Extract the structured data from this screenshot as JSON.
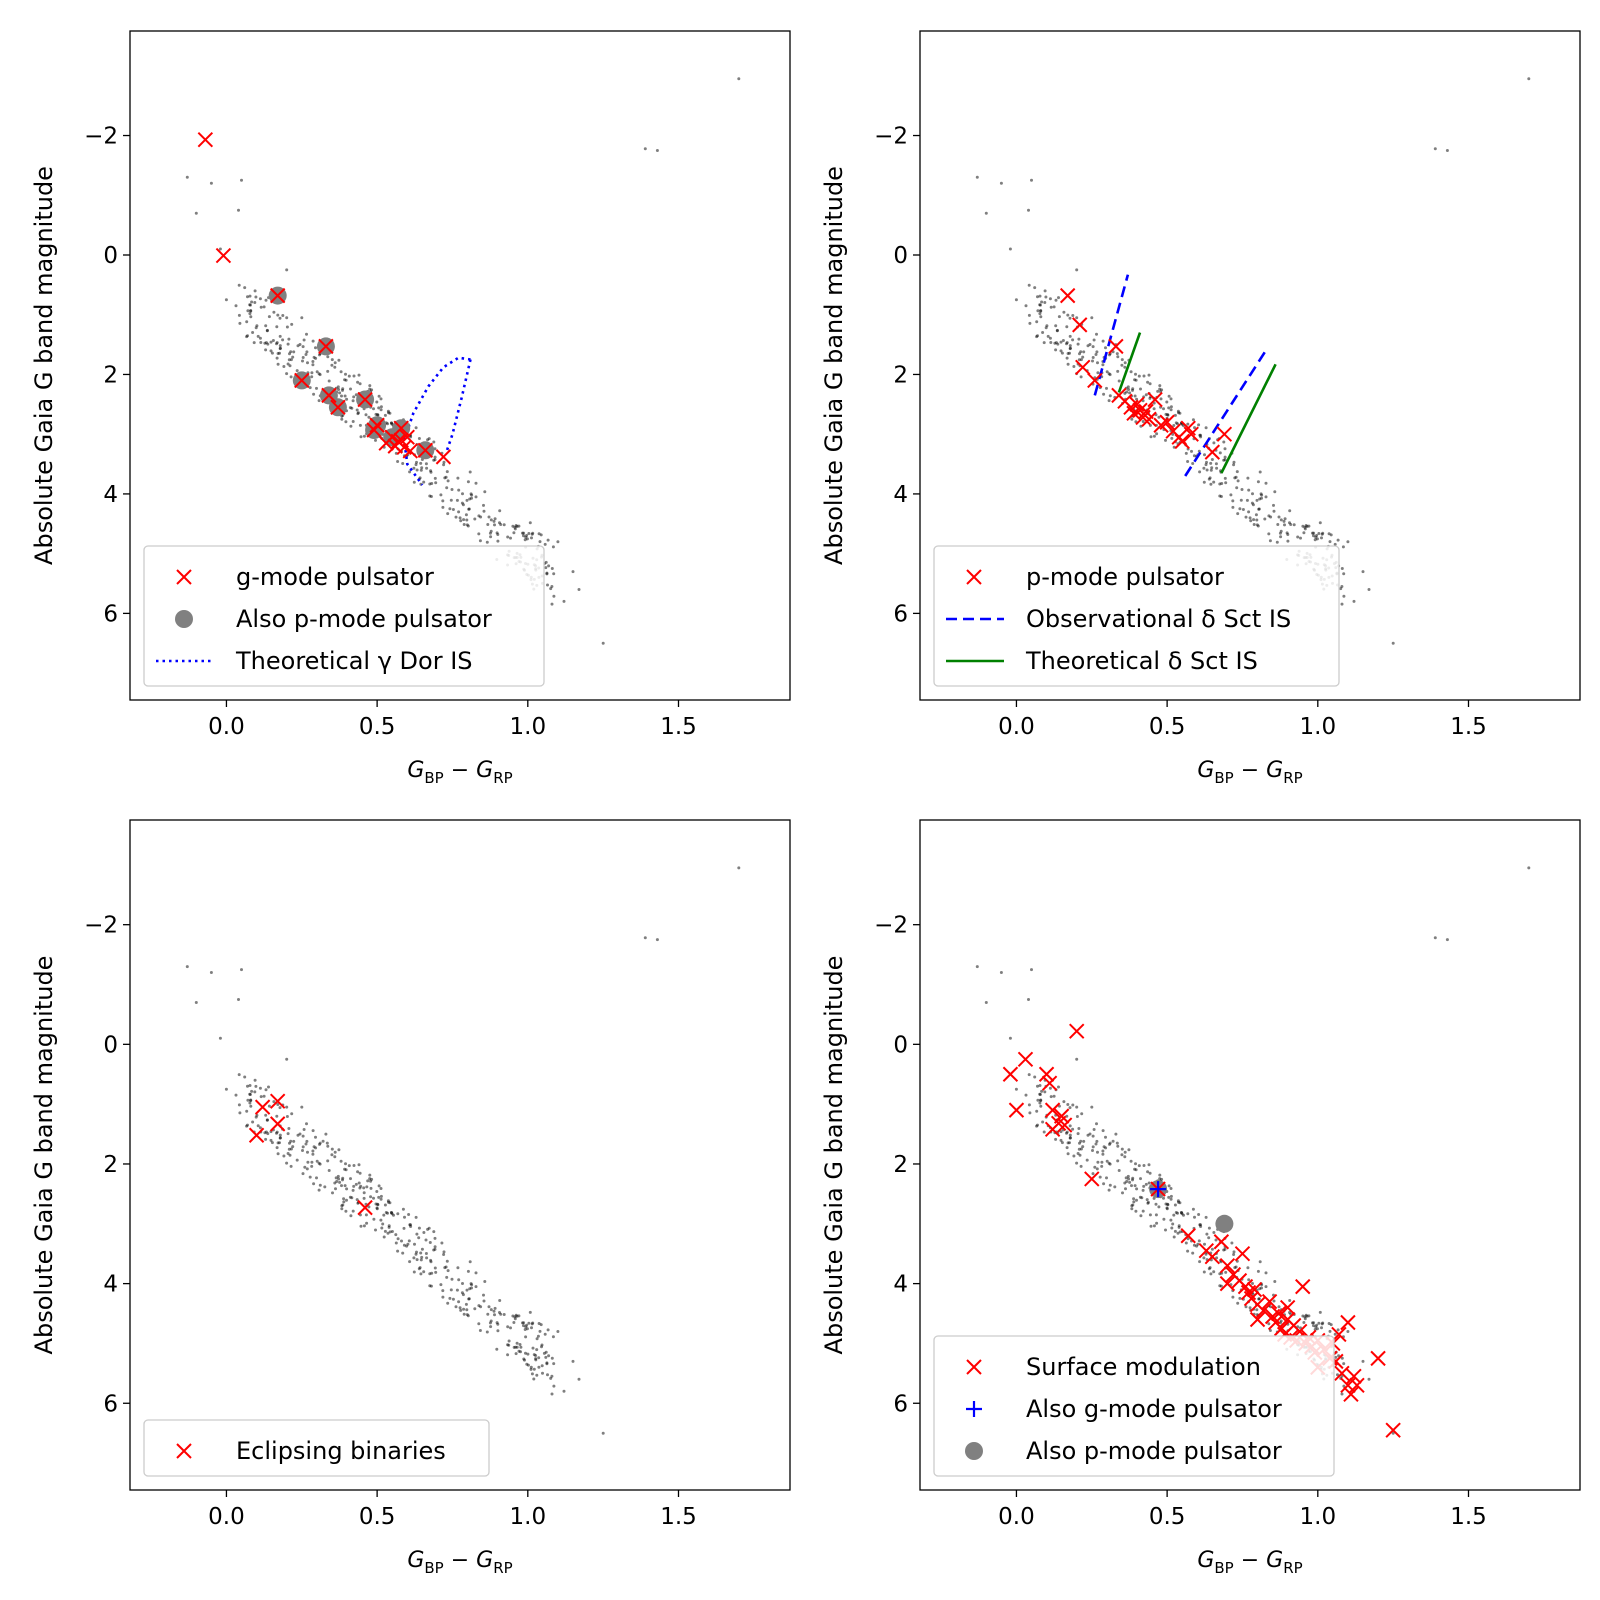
{
  "colors": {
    "red": "#ff0000",
    "blue": "#0000ff",
    "green": "#008000",
    "gray": "#808080",
    "field": "#000000"
  },
  "chart_data": [
    {
      "type": "scatter",
      "panel": "top-left",
      "xlabel": "G_BP − G_RP",
      "xlabel_main": "G",
      "xlabel_sub1": "BP",
      "xlabel_minus": " − ",
      "xlabel_sub2": "RP",
      "ylabel": "Absolute Gaia G band magnitude",
      "xlim": [
        -0.32,
        1.87
      ],
      "ylim": [
        7.45,
        -3.75
      ],
      "xticks": [
        "0.0",
        "0.5",
        "1.0",
        "1.5"
      ],
      "xtick_values": [
        0,
        0.5,
        1.0,
        1.5
      ],
      "yticks": [
        "−2",
        "0",
        "2",
        "4",
        "6"
      ],
      "ytick_values": [
        -2,
        0,
        2,
        4,
        6
      ],
      "legend_position": "lower-left",
      "legend": [
        {
          "label": "g-mode pulsator",
          "marker": "x",
          "color": "#ff0000"
        },
        {
          "label": "Also p-mode pulsator",
          "marker": "o",
          "color": "#808080"
        },
        {
          "label": "Theoretical γ Dor IS",
          "marker": "dotted",
          "color": "#0000ff"
        }
      ],
      "field_stars": "background sample",
      "gray_dots": [
        [
          0.17,
          0.68
        ],
        [
          0.33,
          1.53
        ],
        [
          0.25,
          2.1
        ],
        [
          0.34,
          2.35
        ],
        [
          0.37,
          2.55
        ],
        [
          0.46,
          2.42
        ],
        [
          0.5,
          2.85
        ],
        [
          0.49,
          2.93
        ],
        [
          0.58,
          2.9
        ],
        [
          0.66,
          3.27
        ],
        [
          0.55,
          3.05
        ]
      ],
      "red_x": [
        [
          -0.07,
          -1.93
        ],
        [
          -0.01,
          0.01
        ],
        [
          0.17,
          0.68
        ],
        [
          0.33,
          1.53
        ],
        [
          0.25,
          2.1
        ],
        [
          0.34,
          2.35
        ],
        [
          0.37,
          2.55
        ],
        [
          0.46,
          2.42
        ],
        [
          0.5,
          2.85
        ],
        [
          0.49,
          2.93
        ],
        [
          0.58,
          2.9
        ],
        [
          0.66,
          3.27
        ],
        [
          0.55,
          3.05
        ],
        [
          0.53,
          3.15
        ],
        [
          0.56,
          3.2
        ],
        [
          0.58,
          3.1
        ],
        [
          0.59,
          3.22
        ],
        [
          0.61,
          3.28
        ],
        [
          0.57,
          3.12
        ],
        [
          0.6,
          3.05
        ],
        [
          0.72,
          3.38
        ]
      ],
      "lines": [
        {
          "style": "dotted",
          "color": "#0000ff",
          "points": [
            [
              0.81,
              1.75
            ],
            [
              0.77,
              1.72
            ],
            [
              0.72,
              1.88
            ],
            [
              0.67,
              2.2
            ],
            [
              0.62,
              2.65
            ],
            [
              0.59,
              3.1
            ],
            [
              0.6,
              3.5
            ],
            [
              0.65,
              3.85
            ]
          ]
        },
        {
          "style": "dotted",
          "color": "#0000ff",
          "points": [
            [
              0.81,
              1.75
            ],
            [
              0.78,
              2.4
            ],
            [
              0.75,
              3.0
            ],
            [
              0.73,
              3.3
            ]
          ]
        }
      ]
    },
    {
      "type": "scatter",
      "panel": "top-right",
      "xlabel": "G_BP − G_RP",
      "xlabel_main": "G",
      "xlabel_sub1": "BP",
      "xlabel_minus": " − ",
      "xlabel_sub2": "RP",
      "ylabel": "Absolute Gaia G band magnitude",
      "xlim": [
        -0.32,
        1.87
      ],
      "ylim": [
        7.45,
        -3.75
      ],
      "xticks": [
        "0.0",
        "0.5",
        "1.0",
        "1.5"
      ],
      "xtick_values": [
        0,
        0.5,
        1.0,
        1.5
      ],
      "yticks": [
        "−2",
        "0",
        "2",
        "4",
        "6"
      ],
      "ytick_values": [
        -2,
        0,
        2,
        4,
        6
      ],
      "legend_position": "lower-left",
      "legend": [
        {
          "label": "p-mode pulsator",
          "marker": "x",
          "color": "#ff0000"
        },
        {
          "label": "Observational δ Sct IS",
          "marker": "dashed",
          "color": "#0000ff"
        },
        {
          "label": "Theoretical δ Sct IS",
          "marker": "solid",
          "color": "#008000"
        }
      ],
      "field_stars": "background sample",
      "gray_dots": [],
      "red_x": [
        [
          0.17,
          0.68
        ],
        [
          0.21,
          1.17
        ],
        [
          0.22,
          1.88
        ],
        [
          0.26,
          2.1
        ],
        [
          0.33,
          1.53
        ],
        [
          0.34,
          2.35
        ],
        [
          0.36,
          2.45
        ],
        [
          0.38,
          2.55
        ],
        [
          0.39,
          2.65
        ],
        [
          0.4,
          2.5
        ],
        [
          0.41,
          2.6
        ],
        [
          0.42,
          2.72
        ],
        [
          0.43,
          2.62
        ],
        [
          0.44,
          2.75
        ],
        [
          0.46,
          2.42
        ],
        [
          0.48,
          2.85
        ],
        [
          0.5,
          2.8
        ],
        [
          0.52,
          2.95
        ],
        [
          0.54,
          3.05
        ],
        [
          0.55,
          3.12
        ],
        [
          0.57,
          2.9
        ],
        [
          0.58,
          3.0
        ],
        [
          0.65,
          3.3
        ],
        [
          0.69,
          3.0
        ]
      ],
      "lines": [
        {
          "style": "dashed",
          "color": "#0000ff",
          "points": [
            [
              0.26,
              2.35
            ],
            [
              0.37,
              0.33
            ]
          ]
        },
        {
          "style": "dashed",
          "color": "#0000ff",
          "points": [
            [
              0.56,
              3.7
            ],
            [
              0.83,
              1.58
            ]
          ]
        },
        {
          "style": "solid",
          "color": "#008000",
          "points": [
            [
              0.34,
              2.3
            ],
            [
              0.41,
              1.3
            ]
          ]
        },
        {
          "style": "solid",
          "color": "#008000",
          "points": [
            [
              0.68,
              3.65
            ],
            [
              0.86,
              1.83
            ]
          ]
        }
      ]
    },
    {
      "type": "scatter",
      "panel": "bottom-left",
      "xlabel": "G_BP − G_RP",
      "xlabel_main": "G",
      "xlabel_sub1": "BP",
      "xlabel_minus": " − ",
      "xlabel_sub2": "RP",
      "ylabel": "Absolute Gaia G band magnitude",
      "xlim": [
        -0.32,
        1.87
      ],
      "ylim": [
        7.45,
        -3.75
      ],
      "xticks": [
        "0.0",
        "0.5",
        "1.0",
        "1.5"
      ],
      "xtick_values": [
        0,
        0.5,
        1.0,
        1.5
      ],
      "yticks": [
        "−2",
        "0",
        "2",
        "4",
        "6"
      ],
      "ytick_values": [
        -2,
        0,
        2,
        4,
        6
      ],
      "legend_position": "lower-left",
      "legend": [
        {
          "label": "Eclipsing binaries",
          "marker": "x",
          "color": "#ff0000"
        }
      ],
      "field_stars": "background sample",
      "gray_dots": [],
      "red_x": [
        [
          0.1,
          1.52
        ],
        [
          0.12,
          1.05
        ],
        [
          0.17,
          0.95
        ],
        [
          0.17,
          1.33
        ],
        [
          0.46,
          2.73
        ]
      ],
      "lines": []
    },
    {
      "type": "scatter",
      "panel": "bottom-right",
      "xlabel": "G_BP − G_RP",
      "xlabel_main": "G",
      "xlabel_sub1": "BP",
      "xlabel_minus": " − ",
      "xlabel_sub2": "RP",
      "ylabel": "Absolute Gaia G band magnitude",
      "xlim": [
        -0.32,
        1.87
      ],
      "ylim": [
        7.45,
        -3.75
      ],
      "xticks": [
        "0.0",
        "0.5",
        "1.0",
        "1.5"
      ],
      "xtick_values": [
        0,
        0.5,
        1.0,
        1.5
      ],
      "yticks": [
        "−2",
        "0",
        "2",
        "4",
        "6"
      ],
      "ytick_values": [
        -2,
        0,
        2,
        4,
        6
      ],
      "legend_position": "lower-left",
      "legend": [
        {
          "label": "Surface modulation",
          "marker": "x",
          "color": "#ff0000"
        },
        {
          "label": "Also g-mode pulsator",
          "marker": "+",
          "color": "#0000ff"
        },
        {
          "label": "Also p-mode pulsator",
          "marker": "o",
          "color": "#808080"
        }
      ],
      "field_stars": "background sample",
      "gray_dots": [
        [
          0.47,
          2.42
        ],
        [
          0.69,
          3.0
        ]
      ],
      "blue_plus": [
        [
          0.47,
          2.42
        ]
      ],
      "red_x": [
        [
          -0.02,
          0.5
        ],
        [
          0.03,
          0.25
        ],
        [
          0.0,
          1.1
        ],
        [
          0.1,
          0.5
        ],
        [
          0.11,
          0.65
        ],
        [
          0.12,
          1.1
        ],
        [
          0.12,
          1.42
        ],
        [
          0.14,
          1.32
        ],
        [
          0.15,
          1.2
        ],
        [
          0.16,
          1.35
        ],
        [
          0.2,
          -0.22
        ],
        [
          0.25,
          2.25
        ],
        [
          0.47,
          2.42
        ],
        [
          0.57,
          3.2
        ],
        [
          0.63,
          3.45
        ],
        [
          0.65,
          3.55
        ],
        [
          0.68,
          3.3
        ],
        [
          0.7,
          3.7
        ],
        [
          0.72,
          3.85
        ],
        [
          0.74,
          3.95
        ],
        [
          0.75,
          3.5
        ],
        [
          0.76,
          4.05
        ],
        [
          0.77,
          4.15
        ],
        [
          0.78,
          4.25
        ],
        [
          0.79,
          4.1
        ],
        [
          0.8,
          4.35
        ],
        [
          0.82,
          4.45
        ],
        [
          0.84,
          4.3
        ],
        [
          0.85,
          4.55
        ],
        [
          0.86,
          4.65
        ],
        [
          0.87,
          4.5
        ],
        [
          0.88,
          4.75
        ],
        [
          0.89,
          4.85
        ],
        [
          0.9,
          4.6
        ],
        [
          0.91,
          4.9
        ],
        [
          0.92,
          4.7
        ],
        [
          0.93,
          4.95
        ],
        [
          0.94,
          4.8
        ],
        [
          0.95,
          4.05
        ],
        [
          0.96,
          5.0
        ],
        [
          0.97,
          4.9
        ],
        [
          0.98,
          5.05
        ],
        [
          0.99,
          5.15
        ],
        [
          1.0,
          4.95
        ],
        [
          1.02,
          5.1
        ],
        [
          1.04,
          5.25
        ],
        [
          1.05,
          5.0
        ],
        [
          1.06,
          5.3
        ],
        [
          1.07,
          4.85
        ],
        [
          1.08,
          5.5
        ],
        [
          1.1,
          5.7
        ],
        [
          1.11,
          5.85
        ],
        [
          1.12,
          5.55
        ],
        [
          1.13,
          5.7
        ],
        [
          1.1,
          4.65
        ],
        [
          1.2,
          5.25
        ],
        [
          1.25,
          6.45
        ],
        [
          0.7,
          4.0
        ],
        [
          0.8,
          4.6
        ],
        [
          0.9,
          4.4
        ],
        [
          1.0,
          5.4
        ]
      ],
      "lines": []
    }
  ]
}
